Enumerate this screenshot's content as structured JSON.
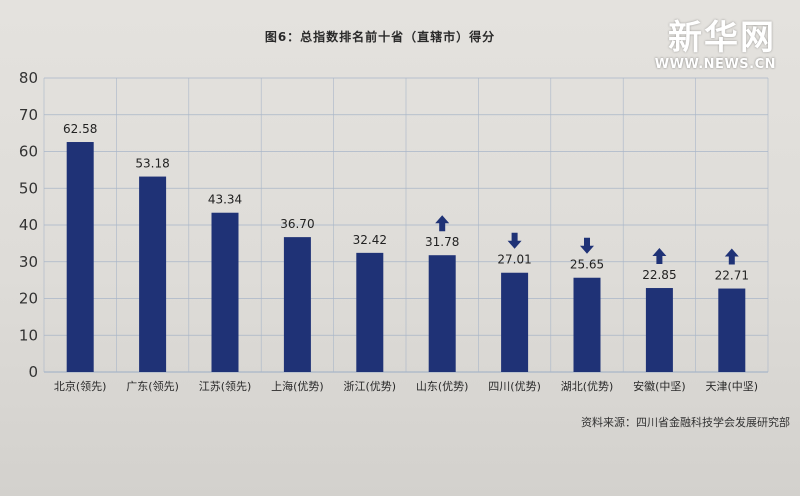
{
  "watermark": {
    "brand": "新华网",
    "url": "WWW.NEWS.CN"
  },
  "source": "资料来源：四川省金融科技学会发展研究部",
  "colors": {
    "bar": "#1f3276",
    "arrow": "#1f3276",
    "axis_text": "#333333",
    "grid": "#a9b6c8"
  },
  "chart_data": {
    "type": "bar",
    "title": "图6：总指数排名前十省（直辖市）得分",
    "xlabel": "",
    "ylabel": "",
    "ylim": [
      0,
      80
    ],
    "yticks": [
      0,
      10,
      20,
      30,
      40,
      50,
      60,
      70,
      80
    ],
    "grid": true,
    "categories": [
      "北京(领先)",
      "广东(领先)",
      "江苏(领先)",
      "上海(优势)",
      "浙江(优势)",
      "山东(优势)",
      "四川(优势)",
      "湖北(优势)",
      "安徽(中坚)",
      "天津(中坚)"
    ],
    "values": [
      62.58,
      53.18,
      43.34,
      36.7,
      32.42,
      31.78,
      27.01,
      25.65,
      22.85,
      22.71
    ],
    "value_labels": [
      "62.58",
      "53.18",
      "43.34",
      "36.70",
      "32.42",
      "31.78",
      "27.01",
      "25.65",
      "22.85",
      "22.71"
    ],
    "trend_arrows": [
      "",
      "",
      "",
      "",
      "",
      "up",
      "down",
      "down",
      "up",
      "up"
    ]
  }
}
